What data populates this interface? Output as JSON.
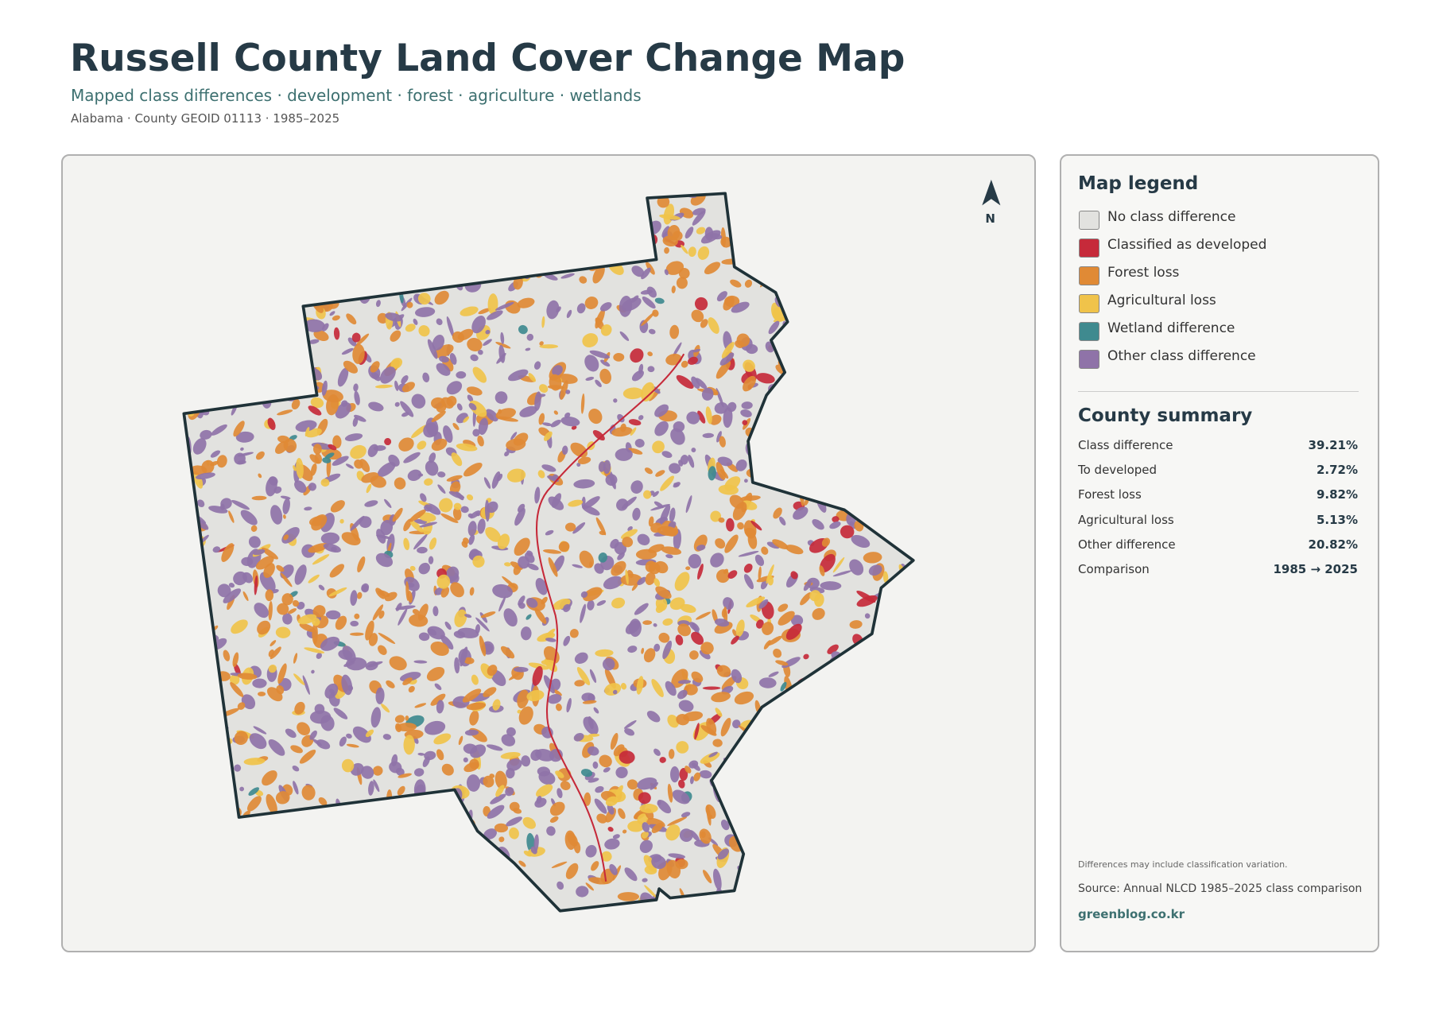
{
  "header": {
    "title": "Russell County Land Cover Change Map",
    "subtitle": "Mapped class differences · development · forest · agriculture · wetlands",
    "meta": "Alabama · County GEOID 01113 · 1985–2025"
  },
  "map": {
    "north_label": "N"
  },
  "legend": {
    "title": "Map legend",
    "items": [
      {
        "label": "No class difference",
        "color": "#e2e2df"
      },
      {
        "label": "Classified as developed",
        "color": "#c62a3a"
      },
      {
        "label": "Forest loss",
        "color": "#e08a35"
      },
      {
        "label": "Agricultural loss",
        "color": "#f0c34a"
      },
      {
        "label": "Wetland difference",
        "color": "#3f8a8f"
      },
      {
        "label": "Other class difference",
        "color": "#8f73a8"
      }
    ]
  },
  "summary": {
    "title": "County summary",
    "rows": [
      [
        "Class difference",
        "39.21%"
      ],
      [
        "To developed",
        "2.72%"
      ],
      [
        "Forest loss",
        "9.82%"
      ],
      [
        "Agricultural loss",
        "5.13%"
      ],
      [
        "Other difference",
        "20.82%"
      ],
      [
        "Comparison",
        "1985 → 2025"
      ]
    ]
  },
  "footer": {
    "note": "Differences may include classification variation.",
    "source": "Source: Annual NLCD 1985–2025 class comparison",
    "credit": "greenblog.co.kr"
  }
}
